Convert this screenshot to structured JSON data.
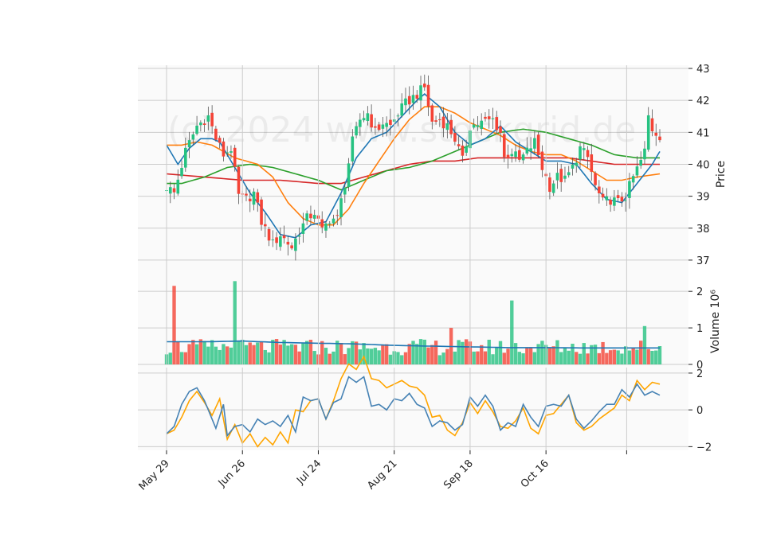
{
  "chart_data": {
    "type": "candlestick",
    "watermark": "(c) 2024 www.stockgrid.de",
    "colors": {
      "up": "#26c281",
      "down": "#f44336",
      "sma_fast": "#1f77b4",
      "sma_mid": "#ff7f0e",
      "sma_slow": "#2ca02c",
      "sma_long": "#d62728",
      "volume_ma": "#1f77b4",
      "osc_1": "#4682b4",
      "osc_2": "#ffa500",
      "grid": "#cccccc",
      "panel_bg": "#fafafa"
    },
    "x_ticks": [
      "May 29",
      "Jun 26",
      "Jul 24",
      "Aug 21",
      "Sep 18",
      "Oct 16"
    ],
    "price_panel": {
      "ylabel": "Price",
      "ylim": [
        36.4,
        43.1
      ],
      "yticks": [
        "37",
        "38",
        "39",
        "40",
        "41",
        "42",
        "43"
      ],
      "candle_anchors": [
        [
          0,
          39.3
        ],
        [
          2,
          39.1
        ],
        [
          5,
          40.4
        ],
        [
          8,
          41.2
        ],
        [
          11,
          41.5
        ],
        [
          13,
          40.8
        ],
        [
          15,
          40.3
        ],
        [
          17,
          40.5
        ],
        [
          19,
          39.0
        ],
        [
          21,
          38.9
        ],
        [
          23,
          39.1
        ],
        [
          25,
          38.2
        ],
        [
          28,
          37.5
        ],
        [
          30,
          37.8
        ],
        [
          33,
          37.4
        ],
        [
          35,
          37.9
        ],
        [
          37,
          38.3
        ],
        [
          39,
          38.5
        ],
        [
          41,
          37.9
        ],
        [
          43,
          38.3
        ],
        [
          45,
          38.3
        ],
        [
          47,
          39.4
        ],
        [
          49,
          40.7
        ],
        [
          51,
          41.4
        ],
        [
          53,
          41.6
        ],
        [
          55,
          41.0
        ],
        [
          57,
          41.3
        ],
        [
          59,
          41.2
        ],
        [
          61,
          41.6
        ],
        [
          63,
          41.9
        ],
        [
          66,
          42.2
        ],
        [
          68,
          42.4
        ],
        [
          70,
          41.3
        ],
        [
          72,
          41.4
        ],
        [
          74,
          41.2
        ],
        [
          76,
          40.8
        ],
        [
          78,
          40.1
        ],
        [
          80,
          41.2
        ],
        [
          83,
          41.3
        ],
        [
          86,
          41.4
        ],
        [
          88,
          41.0
        ],
        [
          89,
          40.2
        ],
        [
          91,
          40.4
        ],
        [
          93,
          40.1
        ],
        [
          95,
          40.4
        ],
        [
          97,
          40.7
        ],
        [
          99,
          39.9
        ],
        [
          101,
          39.3
        ],
        [
          103,
          39.6
        ],
        [
          105,
          39.5
        ],
        [
          107,
          39.9
        ],
        [
          109,
          40.5
        ],
        [
          111,
          40.2
        ],
        [
          113,
          39.3
        ],
        [
          115,
          38.8
        ],
        [
          117,
          38.9
        ],
        [
          119,
          38.8
        ],
        [
          121,
          39.0
        ],
        [
          123,
          39.6
        ],
        [
          125,
          40.1
        ],
        [
          126,
          40.4
        ],
        [
          127,
          41.5
        ],
        [
          128,
          41.1
        ],
        [
          129,
          41.0
        ],
        [
          130,
          40.9
        ]
      ],
      "sma_fast": [
        [
          0,
          40.6
        ],
        [
          3,
          40.0
        ],
        [
          6,
          40.5
        ],
        [
          9,
          40.8
        ],
        [
          12,
          40.8
        ],
        [
          14,
          40.7
        ],
        [
          18,
          39.9
        ],
        [
          22,
          39.1
        ],
        [
          26,
          38.5
        ],
        [
          30,
          37.8
        ],
        [
          34,
          37.7
        ],
        [
          38,
          38.1
        ],
        [
          42,
          38.2
        ],
        [
          46,
          39.1
        ],
        [
          50,
          40.2
        ],
        [
          54,
          40.8
        ],
        [
          58,
          41.0
        ],
        [
          62,
          41.5
        ],
        [
          66,
          42.0
        ],
        [
          68,
          42.2
        ],
        [
          72,
          41.8
        ],
        [
          76,
          41.0
        ],
        [
          80,
          40.6
        ],
        [
          84,
          40.8
        ],
        [
          88,
          41.2
        ],
        [
          92,
          40.7
        ],
        [
          96,
          40.4
        ],
        [
          100,
          40.1
        ],
        [
          104,
          40.1
        ],
        [
          108,
          40.0
        ],
        [
          112,
          39.4
        ],
        [
          116,
          38.9
        ],
        [
          120,
          38.8
        ],
        [
          124,
          39.4
        ],
        [
          128,
          40.0
        ],
        [
          130,
          40.4
        ]
      ],
      "sma_mid": [
        [
          0,
          40.6
        ],
        [
          4,
          40.6
        ],
        [
          8,
          40.7
        ],
        [
          12,
          40.6
        ],
        [
          18,
          40.2
        ],
        [
          24,
          40.0
        ],
        [
          28,
          39.6
        ],
        [
          32,
          38.8
        ],
        [
          36,
          38.3
        ],
        [
          40,
          38.1
        ],
        [
          44,
          38.1
        ],
        [
          48,
          38.6
        ],
        [
          52,
          39.4
        ],
        [
          56,
          40.1
        ],
        [
          60,
          40.8
        ],
        [
          64,
          41.4
        ],
        [
          68,
          41.8
        ],
        [
          72,
          41.8
        ],
        [
          76,
          41.6
        ],
        [
          80,
          41.3
        ],
        [
          84,
          41.1
        ],
        [
          88,
          40.9
        ],
        [
          92,
          40.6
        ],
        [
          96,
          40.4
        ],
        [
          100,
          40.3
        ],
        [
          104,
          40.3
        ],
        [
          108,
          40.1
        ],
        [
          112,
          39.8
        ],
        [
          116,
          39.5
        ],
        [
          120,
          39.5
        ],
        [
          124,
          39.6
        ],
        [
          130,
          39.7
        ]
      ],
      "sma_slow": [
        [
          0,
          39.4
        ],
        [
          4,
          39.4
        ],
        [
          10,
          39.6
        ],
        [
          16,
          39.9
        ],
        [
          22,
          40.0
        ],
        [
          28,
          39.9
        ],
        [
          34,
          39.7
        ],
        [
          40,
          39.5
        ],
        [
          46,
          39.2
        ],
        [
          52,
          39.5
        ],
        [
          58,
          39.8
        ],
        [
          64,
          39.9
        ],
        [
          70,
          40.1
        ],
        [
          76,
          40.4
        ],
        [
          82,
          40.7
        ],
        [
          88,
          41.0
        ],
        [
          94,
          41.1
        ],
        [
          100,
          41.0
        ],
        [
          106,
          40.8
        ],
        [
          112,
          40.6
        ],
        [
          118,
          40.3
        ],
        [
          124,
          40.2
        ],
        [
          130,
          40.2
        ]
      ],
      "sma_long": [
        [
          0,
          39.7
        ],
        [
          10,
          39.6
        ],
        [
          20,
          39.5
        ],
        [
          30,
          39.5
        ],
        [
          40,
          39.4
        ],
        [
          46,
          39.4
        ],
        [
          52,
          39.6
        ],
        [
          58,
          39.8
        ],
        [
          64,
          40.0
        ],
        [
          70,
          40.1
        ],
        [
          76,
          40.1
        ],
        [
          82,
          40.2
        ],
        [
          88,
          40.2
        ],
        [
          94,
          40.2
        ],
        [
          100,
          40.2
        ],
        [
          106,
          40.2
        ],
        [
          112,
          40.1
        ],
        [
          118,
          40.0
        ],
        [
          124,
          40.0
        ],
        [
          130,
          40.0
        ]
      ]
    },
    "volume_panel": {
      "ylabel": "Volume  10⁶",
      "ylim": [
        0,
        2.2
      ],
      "yticks": [
        "0",
        "1",
        "2"
      ],
      "spikes": {
        "2": 2.15,
        "18": 2.28,
        "91": 1.75,
        "75": 1.0,
        "126": 1.05
      },
      "ma": [
        [
          0,
          0.62
        ],
        [
          10,
          0.62
        ],
        [
          20,
          0.64
        ],
        [
          30,
          0.6
        ],
        [
          40,
          0.58
        ],
        [
          50,
          0.56
        ],
        [
          60,
          0.52
        ],
        [
          70,
          0.5
        ],
        [
          80,
          0.48
        ],
        [
          90,
          0.46
        ],
        [
          100,
          0.46
        ],
        [
          110,
          0.45
        ],
        [
          120,
          0.45
        ],
        [
          130,
          0.45
        ]
      ]
    },
    "oscillator_panel": {
      "ylim": [
        -2.2,
        2.3
      ],
      "yticks": [
        "−2",
        "0",
        "2"
      ],
      "line1": [
        [
          0,
          -1.3
        ],
        [
          2,
          -0.9
        ],
        [
          4,
          0.3
        ],
        [
          6,
          1.0
        ],
        [
          8,
          1.2
        ],
        [
          10,
          0.5
        ],
        [
          12,
          -0.5
        ],
        [
          13,
          -1.0
        ],
        [
          15,
          0.3
        ],
        [
          16,
          -1.4
        ],
        [
          18,
          -0.9
        ],
        [
          20,
          -0.8
        ],
        [
          22,
          -1.2
        ],
        [
          24,
          -0.5
        ],
        [
          26,
          -0.8
        ],
        [
          28,
          -0.6
        ],
        [
          30,
          -0.9
        ],
        [
          32,
          -0.3
        ],
        [
          34,
          -1.2
        ],
        [
          36,
          0.7
        ],
        [
          38,
          0.5
        ],
        [
          40,
          0.6
        ],
        [
          42,
          -0.5
        ],
        [
          44,
          0.4
        ],
        [
          46,
          0.6
        ],
        [
          48,
          1.8
        ],
        [
          50,
          1.5
        ],
        [
          52,
          1.8
        ],
        [
          54,
          0.2
        ],
        [
          56,
          0.3
        ],
        [
          58,
          0.0
        ],
        [
          60,
          0.6
        ],
        [
          62,
          0.5
        ],
        [
          64,
          0.9
        ],
        [
          66,
          0.3
        ],
        [
          68,
          0.1
        ],
        [
          70,
          -0.9
        ],
        [
          72,
          -0.6
        ],
        [
          74,
          -0.7
        ],
        [
          76,
          -1.1
        ],
        [
          78,
          -0.8
        ],
        [
          80,
          0.7
        ],
        [
          82,
          0.2
        ],
        [
          84,
          0.8
        ],
        [
          86,
          0.2
        ],
        [
          88,
          -1.1
        ],
        [
          90,
          -0.7
        ],
        [
          92,
          -0.9
        ],
        [
          94,
          0.3
        ],
        [
          96,
          -0.4
        ],
        [
          98,
          -0.9
        ],
        [
          100,
          0.2
        ],
        [
          102,
          0.3
        ],
        [
          104,
          0.2
        ],
        [
          106,
          0.8
        ],
        [
          108,
          -0.5
        ],
        [
          110,
          -1.0
        ],
        [
          112,
          -0.6
        ],
        [
          114,
          -0.1
        ],
        [
          116,
          0.3
        ],
        [
          118,
          0.3
        ],
        [
          120,
          1.1
        ],
        [
          122,
          0.7
        ],
        [
          124,
          1.4
        ],
        [
          126,
          0.8
        ],
        [
          128,
          1.0
        ],
        [
          130,
          0.8
        ]
      ],
      "line2": [
        [
          0,
          -1.3
        ],
        [
          2,
          -1.1
        ],
        [
          4,
          -0.4
        ],
        [
          6,
          0.5
        ],
        [
          8,
          1.0
        ],
        [
          10,
          0.4
        ],
        [
          12,
          -0.3
        ],
        [
          14,
          0.6
        ],
        [
          16,
          -1.6
        ],
        [
          18,
          -0.8
        ],
        [
          20,
          -1.8
        ],
        [
          22,
          -1.3
        ],
        [
          24,
          -2.0
        ],
        [
          26,
          -1.5
        ],
        [
          28,
          -1.9
        ],
        [
          30,
          -1.2
        ],
        [
          32,
          -1.8
        ],
        [
          34,
          0.0
        ],
        [
          36,
          -0.1
        ],
        [
          38,
          0.5
        ],
        [
          40,
          0.6
        ],
        [
          42,
          -0.5
        ],
        [
          44,
          0.5
        ],
        [
          46,
          1.7
        ],
        [
          48,
          2.5
        ],
        [
          50,
          2.2
        ],
        [
          52,
          2.9
        ],
        [
          54,
          1.7
        ],
        [
          56,
          1.6
        ],
        [
          58,
          1.2
        ],
        [
          60,
          1.4
        ],
        [
          62,
          1.6
        ],
        [
          64,
          1.3
        ],
        [
          66,
          1.2
        ],
        [
          68,
          0.8
        ],
        [
          70,
          -0.4
        ],
        [
          72,
          -0.3
        ],
        [
          74,
          -1.1
        ],
        [
          76,
          -1.4
        ],
        [
          78,
          -0.7
        ],
        [
          80,
          0.4
        ],
        [
          82,
          -0.2
        ],
        [
          84,
          0.5
        ],
        [
          86,
          -0.1
        ],
        [
          88,
          -0.9
        ],
        [
          90,
          -1.0
        ],
        [
          92,
          -0.6
        ],
        [
          94,
          0.1
        ],
        [
          96,
          -1.0
        ],
        [
          98,
          -1.3
        ],
        [
          100,
          -0.3
        ],
        [
          102,
          -0.2
        ],
        [
          104,
          0.3
        ],
        [
          106,
          0.8
        ],
        [
          108,
          -0.7
        ],
        [
          110,
          -1.1
        ],
        [
          112,
          -0.9
        ],
        [
          114,
          -0.5
        ],
        [
          116,
          -0.2
        ],
        [
          118,
          0.1
        ],
        [
          120,
          0.8
        ],
        [
          122,
          0.5
        ],
        [
          124,
          1.6
        ],
        [
          126,
          1.1
        ],
        [
          128,
          1.5
        ],
        [
          130,
          1.4
        ]
      ]
    }
  }
}
